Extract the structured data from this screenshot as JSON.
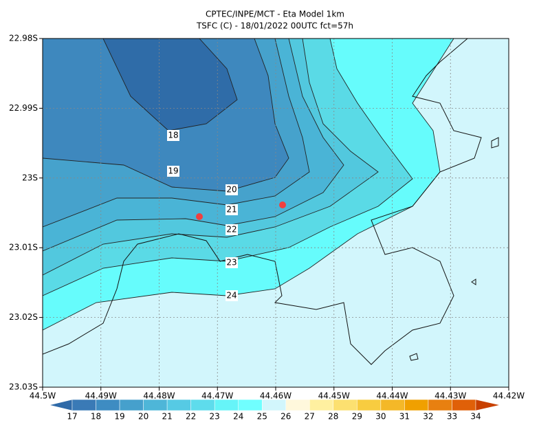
{
  "title": "CPTEC/INPE/MCT -  Eta Model 1km",
  "subtitle": "TSFC (C) - 18/01/2022 00UTC fct=57h",
  "y_ticks": [
    "22.98S",
    "22.99S",
    "23S",
    "23.01S",
    "23.02S",
    "23.03S"
  ],
  "x_ticks": [
    "44.5W",
    "44.49W",
    "44.48W",
    "44.47W",
    "44.46W",
    "44.45W",
    "44.44W",
    "44.43W",
    "44.42W"
  ],
  "contour_labels": [
    "18",
    "19",
    "20",
    "21",
    "22",
    "23",
    "24"
  ],
  "colorbar": {
    "labels": [
      "17",
      "18",
      "19",
      "20",
      "21",
      "22",
      "23",
      "24",
      "25",
      "26",
      "27",
      "28",
      "29",
      "30",
      "31",
      "32",
      "33",
      "34"
    ],
    "colors": [
      "#2f6aa8",
      "#3a7ab6",
      "#3e8cc2",
      "#46a0cc",
      "#4eb6d8",
      "#56cae4",
      "#5edcec",
      "#66f4f8",
      "#70ffff",
      "#d2f6fc",
      "#fff8dc",
      "#fff0a0",
      "#fce070",
      "#f8cc40",
      "#f4b828",
      "#f0a000",
      "#e88010",
      "#e06008",
      "#c84000"
    ]
  }
}
